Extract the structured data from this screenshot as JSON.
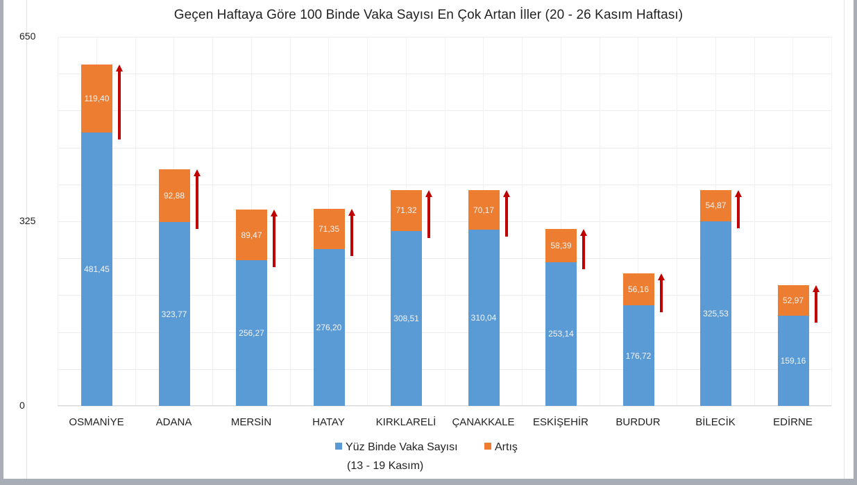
{
  "chart_data": {
    "type": "bar",
    "stacked": true,
    "title": "Geçen Haftaya Göre 100 Binde Vaka Sayısı En Çok Artan İller (20 - 26 Kasım Haftası)",
    "xlabel": "",
    "ylabel": "",
    "ylim": [
      0,
      650
    ],
    "yticks": [
      "0",
      "325",
      "650"
    ],
    "grid": true,
    "legend_position": "bottom",
    "categories": [
      "OSMANİYE",
      "ADANA",
      "MERSİN",
      "HATAY",
      "KIRKLARELİ",
      "ÇANAKKALE",
      "ESKİŞEHİR",
      "BURDUR",
      "BİLECİK",
      "EDİRNE"
    ],
    "series": [
      {
        "name": "Yüz Binde Vaka Sayısı (13 - 19 Kasım)",
        "color": "#5b9bd5",
        "values": [
          481.45,
          323.77,
          256.27,
          276.2,
          308.51,
          310.04,
          253.14,
          176.72,
          325.53,
          159.16
        ],
        "labels": [
          "481,45",
          "323,77",
          "256,27",
          "276,20",
          "308,51",
          "310,04",
          "253,14",
          "176,72",
          "325,53",
          "159,16"
        ]
      },
      {
        "name": "Artış",
        "color": "#ed7d31",
        "values": [
          119.4,
          92.88,
          89.47,
          71.35,
          71.32,
          70.17,
          58.39,
          56.16,
          54.87,
          52.97
        ],
        "labels": [
          "119,40",
          "92,88",
          "89,47",
          "71,35",
          "71,32",
          "70,17",
          "58,39",
          "56,16",
          "54,87",
          "52,97"
        ]
      }
    ],
    "annotations": [
      "red upward arrow beside each bar's Artış segment"
    ],
    "arrow_color": "#c00000"
  },
  "legend": {
    "item1_line1": "Yüz Binde Vaka Sayısı",
    "item1_line2": "(13 - 19 Kasım)",
    "item2": "Artış"
  }
}
